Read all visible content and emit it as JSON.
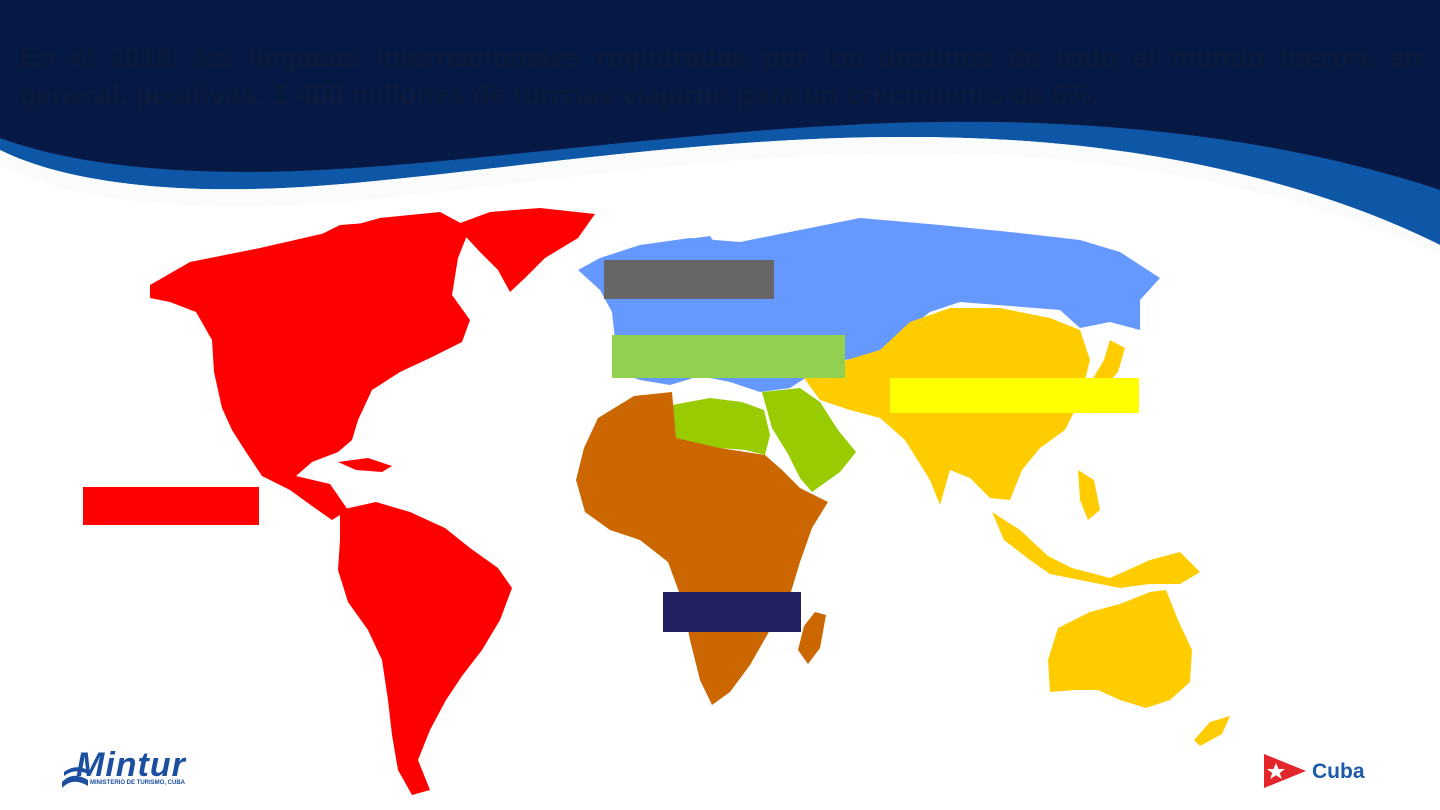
{
  "slide": {
    "headline": "En el 2018, las llegadas internacionales registradas por los destinos de todo el mundo fueron, en general, positivas: 1 400 millones de turistas viajaron para un crecimiento de 6%."
  },
  "map": {
    "regions": [
      {
        "name": "Americas",
        "color": "#ff0000"
      },
      {
        "name": "Europe",
        "color": "#6699ff"
      },
      {
        "name": "Middle East",
        "color": "#99cc00"
      },
      {
        "name": "Africa",
        "color": "#cc6600"
      },
      {
        "name": "Asia and the Pacific",
        "color": "#ffcc00"
      }
    ],
    "label_boxes": [
      {
        "name": "europe-label-box",
        "color": "#666666"
      },
      {
        "name": "middle-east-label-box",
        "color": "#92d050"
      },
      {
        "name": "asia-pacific-label-box",
        "color": "#ffff00"
      },
      {
        "name": "americas-label-box",
        "color": "#ff0000"
      },
      {
        "name": "africa-label-box",
        "color": "#212060"
      }
    ]
  },
  "logos": {
    "mintur_name": "Mintur",
    "mintur_subtitle": "MINISTERIO DE TURISMO, CUBA",
    "cuba_name": "Cuba"
  },
  "theme": {
    "header_dark": "#061945",
    "header_wave": "#0d57a6"
  }
}
